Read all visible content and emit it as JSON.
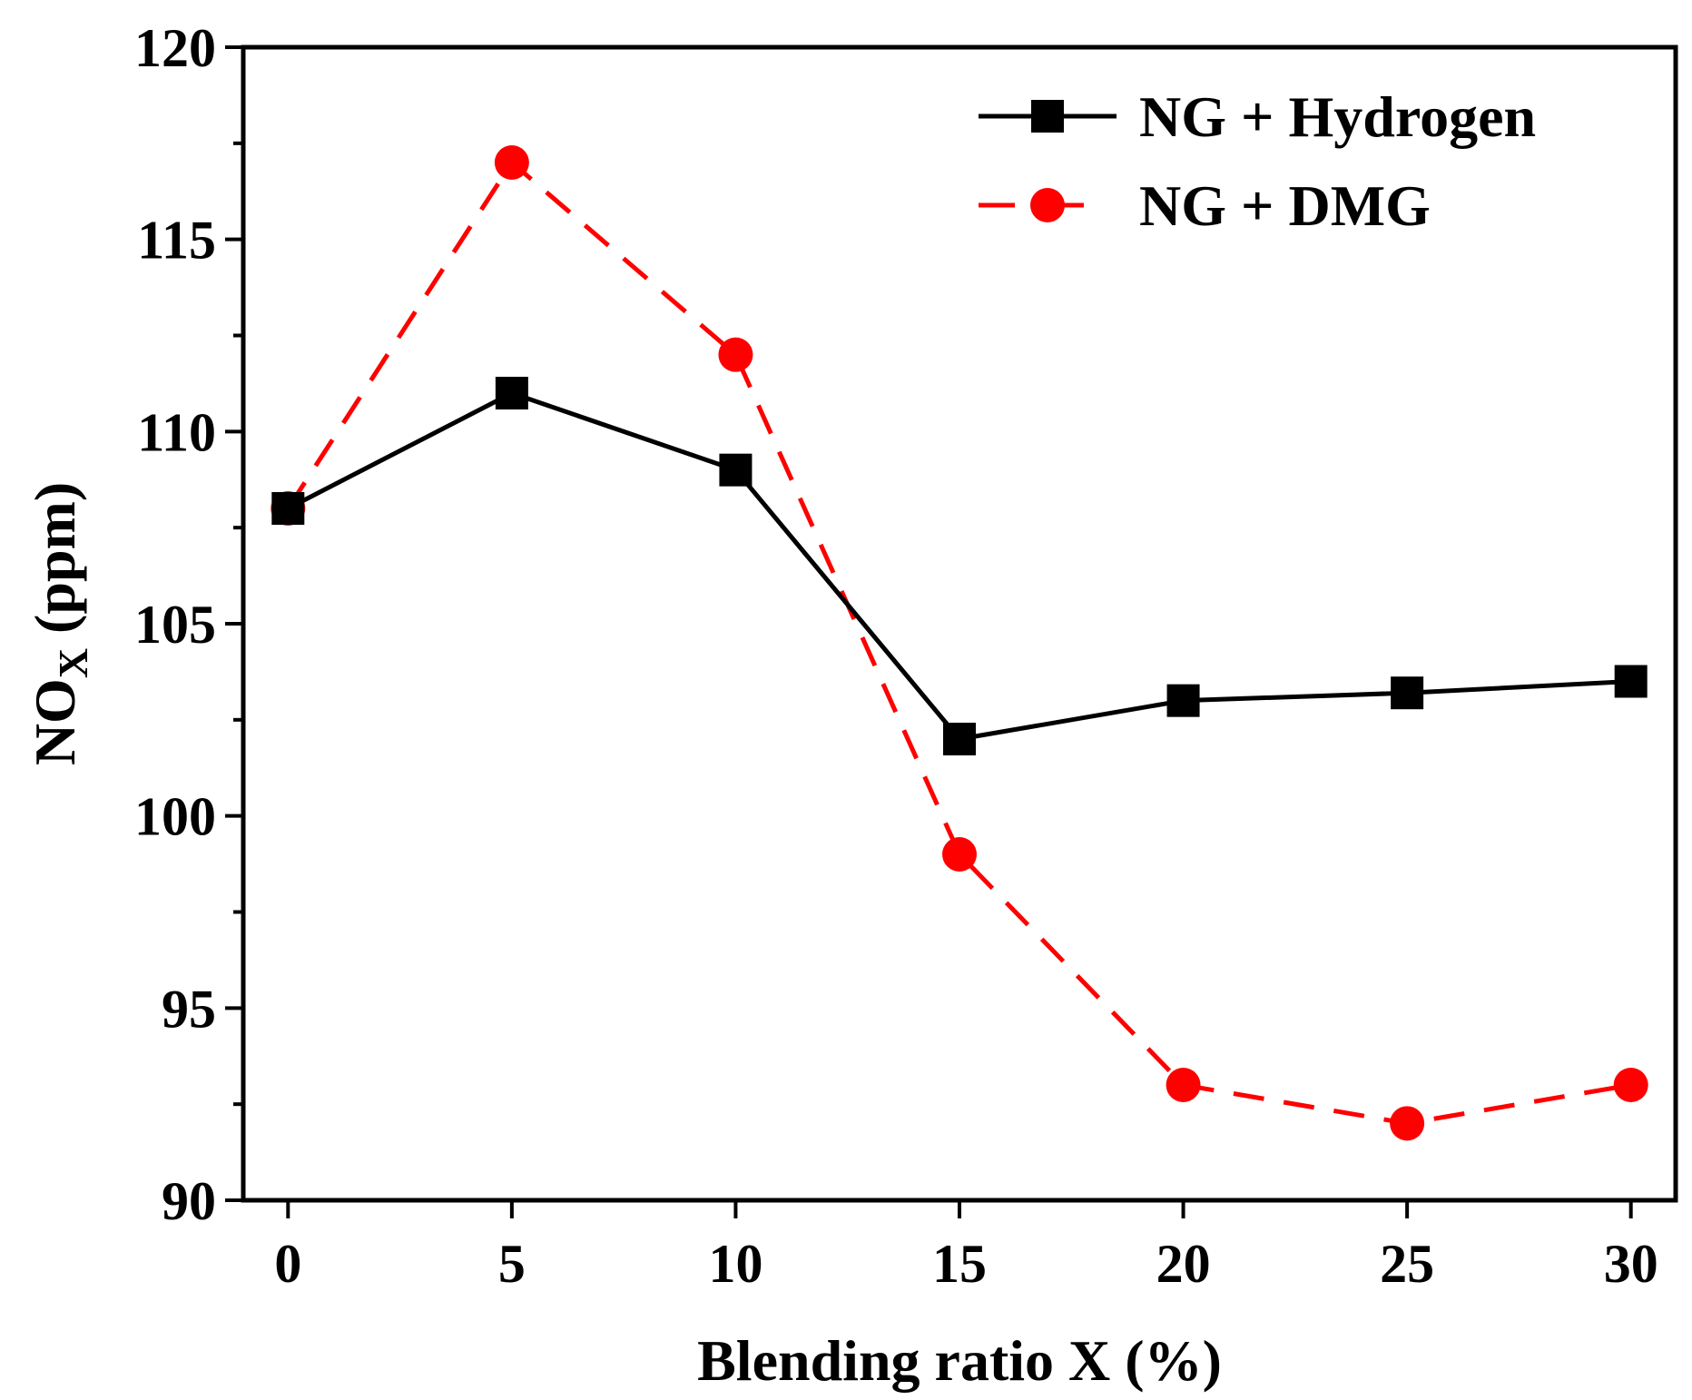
{
  "chart_data": {
    "type": "line",
    "title": "",
    "xlabel": "Blending ratio X (%)",
    "ylabel_main": "NO",
    "ylabel_sub": "X",
    "ylabel_unit": "(ppm)",
    "xlim": [
      -1,
      31
    ],
    "ylim": [
      90,
      120
    ],
    "xticks": [
      0,
      5,
      10,
      15,
      20,
      25,
      30
    ],
    "yticks": [
      90,
      95,
      100,
      105,
      110,
      115,
      120
    ],
    "x": [
      0,
      5,
      10,
      15,
      20,
      25,
      30
    ],
    "grid": false,
    "legend_position": "top-right",
    "series": [
      {
        "name": "NG + Hydrogen",
        "values": [
          108,
          111,
          109,
          102,
          103,
          103.2,
          103.5
        ],
        "color": "#000000",
        "line_style": "solid",
        "marker": "square"
      },
      {
        "name": "NG + DMG",
        "values": [
          108,
          117,
          112,
          99,
          93,
          92,
          93
        ],
        "color": "#ff0000",
        "line_style": "dashed",
        "marker": "circle"
      }
    ]
  }
}
